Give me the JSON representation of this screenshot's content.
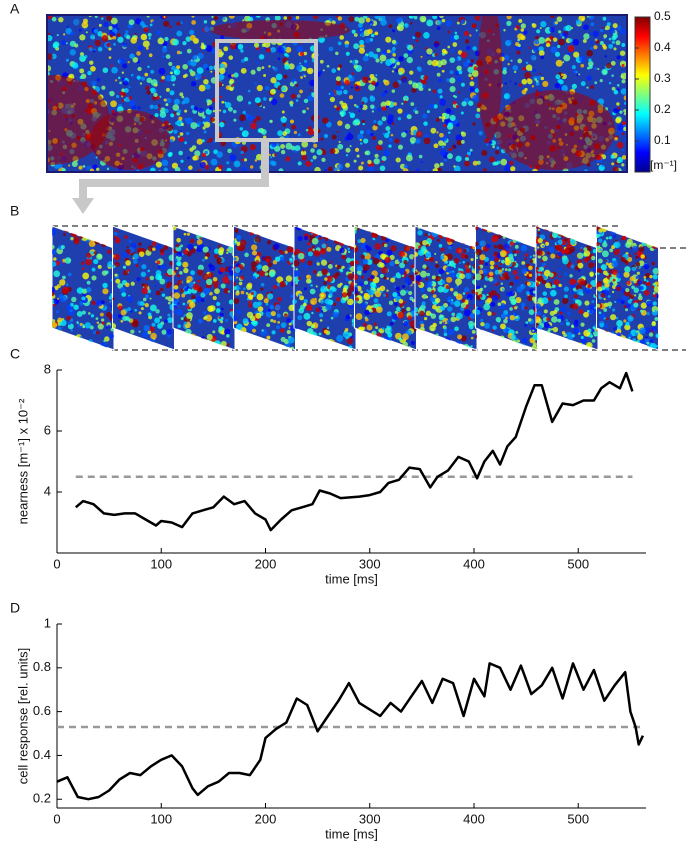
{
  "chart_data": [
    {
      "type": "heatmap",
      "panel": "A",
      "colorbar": {
        "clim": [
          0,
          0.5
        ],
        "ticks": [
          0.1,
          0.2,
          0.3,
          0.4,
          0.5
        ],
        "label": "[m⁻¹]"
      }
    },
    {
      "type": "image-sequence",
      "panel": "B"
    },
    {
      "type": "line",
      "panel": "C",
      "xlabel": "time [ms]",
      "ylabel": "nearness [m⁻¹] x 10⁻²",
      "color": "#000000",
      "x": [
        18,
        25,
        35,
        45,
        55,
        65,
        75,
        85,
        95,
        100,
        110,
        120,
        130,
        140,
        150,
        160,
        170,
        180,
        190,
        200,
        205,
        215,
        225,
        235,
        245,
        252,
        262,
        272,
        290,
        300,
        310,
        318,
        328,
        338,
        348,
        358,
        365,
        375,
        385,
        395,
        403,
        410,
        418,
        425,
        432,
        440,
        450,
        458,
        465,
        475,
        485,
        495,
        505,
        515,
        522,
        530,
        540,
        546,
        552
      ],
      "values": [
        3.5,
        3.7,
        3.6,
        3.3,
        3.25,
        3.3,
        3.3,
        3.1,
        2.9,
        3.05,
        3.0,
        2.85,
        3.3,
        3.4,
        3.5,
        3.85,
        3.6,
        3.7,
        3.3,
        3.1,
        2.75,
        3.1,
        3.4,
        3.5,
        3.6,
        4.05,
        3.95,
        3.8,
        3.85,
        3.9,
        4.0,
        4.3,
        4.4,
        4.8,
        4.75,
        4.15,
        4.5,
        4.7,
        5.15,
        5.0,
        4.45,
        5.0,
        5.35,
        4.9,
        5.5,
        5.8,
        6.8,
        7.5,
        7.5,
        6.3,
        6.9,
        6.85,
        7.0,
        7.0,
        7.4,
        7.6,
        7.4,
        7.9,
        7.3
      ],
      "reference_line": {
        "value": 4.5,
        "color": "#999999"
      },
      "xlim": [
        0,
        565
      ],
      "ylim": [
        2,
        8
      ],
      "xticks": [
        0,
        100,
        200,
        300,
        400,
        500
      ],
      "yticks": [
        4,
        6,
        8
      ]
    },
    {
      "type": "line",
      "panel": "D",
      "xlabel": "time [ms]",
      "ylabel": "cell response [rel. units]",
      "color": "#000000",
      "x": [
        0,
        10,
        20,
        30,
        40,
        50,
        60,
        70,
        80,
        90,
        100,
        110,
        120,
        130,
        135,
        145,
        155,
        165,
        175,
        185,
        195,
        200,
        210,
        220,
        230,
        240,
        250,
        260,
        270,
        280,
        290,
        300,
        310,
        320,
        330,
        340,
        350,
        360,
        370,
        380,
        390,
        400,
        410,
        415,
        425,
        435,
        445,
        455,
        465,
        475,
        485,
        495,
        505,
        515,
        525,
        535,
        545,
        550,
        555,
        558,
        562
      ],
      "values": [
        0.28,
        0.3,
        0.21,
        0.2,
        0.21,
        0.24,
        0.29,
        0.32,
        0.31,
        0.35,
        0.38,
        0.4,
        0.35,
        0.25,
        0.22,
        0.26,
        0.28,
        0.32,
        0.32,
        0.31,
        0.38,
        0.48,
        0.52,
        0.55,
        0.66,
        0.63,
        0.51,
        0.58,
        0.65,
        0.73,
        0.64,
        0.61,
        0.58,
        0.64,
        0.6,
        0.67,
        0.74,
        0.64,
        0.75,
        0.73,
        0.58,
        0.75,
        0.67,
        0.82,
        0.8,
        0.7,
        0.81,
        0.68,
        0.72,
        0.8,
        0.66,
        0.82,
        0.7,
        0.79,
        0.65,
        0.72,
        0.78,
        0.6,
        0.53,
        0.45,
        0.49
      ],
      "reference_line": {
        "value": 0.53,
        "color": "#999999"
      },
      "xlim": [
        0,
        565
      ],
      "ylim": [
        0.16,
        1
      ],
      "xticks": [
        0,
        100,
        200,
        300,
        400,
        500
      ],
      "yticks": [
        0.2,
        0.4,
        0.6,
        0.8,
        1
      ]
    }
  ]
}
